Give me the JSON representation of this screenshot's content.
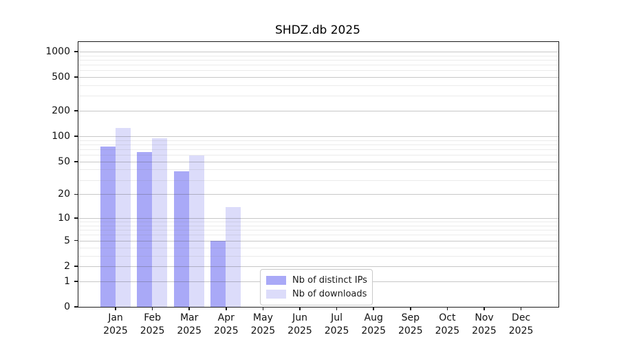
{
  "chart_data": {
    "type": "bar",
    "title": "SHDZ.db 2025",
    "categories": [
      "Jan 2025",
      "Feb 2025",
      "Mar 2025",
      "Apr 2025",
      "May 2025",
      "Jun 2025",
      "Jul 2025",
      "Aug 2025",
      "Sep 2025",
      "Oct 2025",
      "Nov 2025",
      "Dec 2025"
    ],
    "months": [
      "Jan",
      "Feb",
      "Mar",
      "Apr",
      "May",
      "Jun",
      "Jul",
      "Aug",
      "Sep",
      "Oct",
      "Nov",
      "Dec"
    ],
    "x_year": "2025",
    "series": [
      {
        "name": "Nb of distinct IPs",
        "color": "#a9a9f7",
        "values": [
          75,
          65,
          38,
          5,
          0,
          0,
          0,
          0,
          0,
          0,
          0,
          0
        ]
      },
      {
        "name": "Nb of downloads",
        "color": "#dcdcfa",
        "values": [
          125,
          95,
          59,
          14,
          0,
          0,
          0,
          0,
          0,
          0,
          0,
          0
        ]
      }
    ],
    "y_scale": "log1p",
    "ylim": [
      0,
      1000
    ],
    "y_ticks": [
      0,
      1,
      2,
      5,
      10,
      20,
      50,
      100,
      200,
      500,
      1000
    ],
    "y_tick_labels": [
      "0",
      "1",
      "2",
      "5",
      "10",
      "20",
      "50",
      "100",
      "200",
      "500",
      "1000"
    ],
    "y_minor_ticks": [
      3,
      4,
      6,
      7,
      8,
      9,
      30,
      40,
      60,
      70,
      80,
      90,
      300,
      400,
      600,
      700,
      800,
      900
    ],
    "grid": true,
    "legend_position": "lower center",
    "colors": {
      "grid_major": "#c6c6c6",
      "grid_minor": "#eaeaea",
      "spine": "#1a1a1a",
      "text": "#111111",
      "background": "#ffffff"
    }
  }
}
